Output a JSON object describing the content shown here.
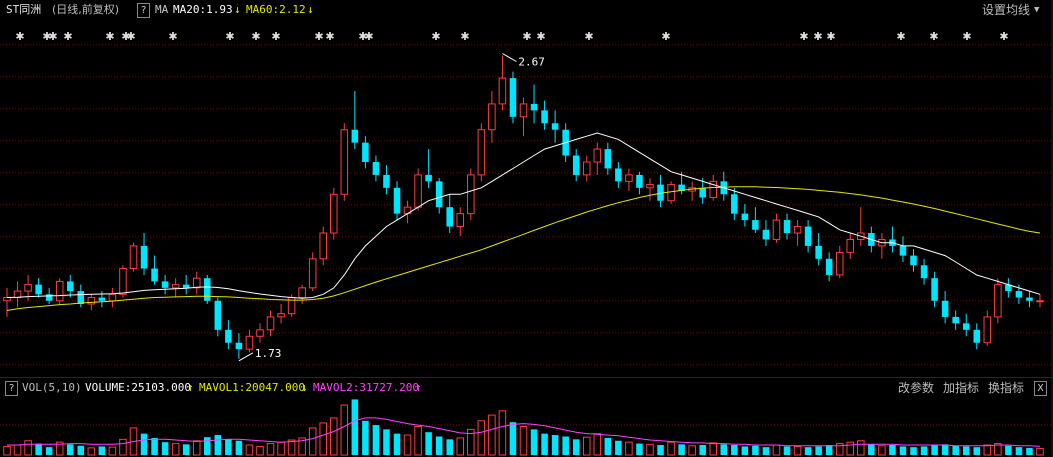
{
  "header": {
    "stock_name": "ST同洲",
    "period": "(日线,前复权)",
    "help": "?",
    "ma_label": "MA",
    "ma20_label": "MA20:1.93",
    "ma20_arrow": "↓",
    "ma60_label": "MA60:2.12",
    "ma60_arrow": "↓",
    "settings_button": "设置均线"
  },
  "volume_header": {
    "help": "?",
    "indicator": "VOL(5,10)",
    "volume_label": "VOLUME:25103.000",
    "volume_arrow": "↑",
    "mavol1_label": "MAVOL1:20047.000",
    "mavol1_arrow": "↓",
    "mavol2_label": "MAVOL2:31727.200",
    "mavol2_arrow": "↑",
    "change_params": "改参数",
    "add_indicator": "加指标",
    "swap_indicator": "换指标",
    "close": "X"
  },
  "chart_data": {
    "type": "candlestick",
    "price_annotations": {
      "high": "2.67",
      "low": "1.73"
    },
    "colors": {
      "up": "#ff3c3c",
      "down": "#00e5ff",
      "ma20": "#ffffff",
      "ma60": "#e6e600",
      "mavol2": "#ff40ff",
      "grid": "#7a0000"
    },
    "candles": [
      [
        1.91,
        1.95,
        1.86,
        1.92
      ],
      [
        1.92,
        1.97,
        1.89,
        1.94
      ],
      [
        1.94,
        1.99,
        1.91,
        1.96
      ],
      [
        1.96,
        1.98,
        1.92,
        1.93
      ],
      [
        1.93,
        1.95,
        1.9,
        1.91
      ],
      [
        1.91,
        1.98,
        1.9,
        1.97
      ],
      [
        1.97,
        1.99,
        1.92,
        1.94
      ],
      [
        1.94,
        1.96,
        1.89,
        1.9
      ],
      [
        1.9,
        1.93,
        1.88,
        1.92
      ],
      [
        1.92,
        1.94,
        1.89,
        1.91
      ],
      [
        1.91,
        1.95,
        1.89,
        1.93
      ],
      [
        1.93,
        2.02,
        1.92,
        2.01
      ],
      [
        2.01,
        2.09,
        2.0,
        2.08
      ],
      [
        2.08,
        2.12,
        1.99,
        2.01
      ],
      [
        2.01,
        2.05,
        1.96,
        1.97
      ],
      [
        1.97,
        1.99,
        1.93,
        1.95
      ],
      [
        1.95,
        1.98,
        1.92,
        1.96
      ],
      [
        1.96,
        1.99,
        1.93,
        1.95
      ],
      [
        1.95,
        2.0,
        1.93,
        1.98
      ],
      [
        1.98,
        1.99,
        1.9,
        1.91
      ],
      [
        1.91,
        1.92,
        1.8,
        1.82
      ],
      [
        1.82,
        1.85,
        1.76,
        1.78
      ],
      [
        1.78,
        1.81,
        1.73,
        1.76
      ],
      [
        1.76,
        1.82,
        1.75,
        1.8
      ],
      [
        1.8,
        1.84,
        1.78,
        1.82
      ],
      [
        1.82,
        1.88,
        1.8,
        1.86
      ],
      [
        1.86,
        1.9,
        1.84,
        1.87
      ],
      [
        1.87,
        1.93,
        1.86,
        1.92
      ],
      [
        1.92,
        1.96,
        1.9,
        1.95
      ],
      [
        1.95,
        2.06,
        1.94,
        2.04
      ],
      [
        2.04,
        2.14,
        2.02,
        2.12
      ],
      [
        2.12,
        2.26,
        2.1,
        2.24
      ],
      [
        2.24,
        2.46,
        2.22,
        2.44
      ],
      [
        2.44,
        2.56,
        2.38,
        2.4
      ],
      [
        2.4,
        2.42,
        2.32,
        2.34
      ],
      [
        2.34,
        2.36,
        2.28,
        2.3
      ],
      [
        2.3,
        2.33,
        2.24,
        2.26
      ],
      [
        2.26,
        2.28,
        2.16,
        2.18
      ],
      [
        2.18,
        2.22,
        2.15,
        2.2
      ],
      [
        2.2,
        2.32,
        2.19,
        2.3
      ],
      [
        2.3,
        2.38,
        2.26,
        2.28
      ],
      [
        2.28,
        2.29,
        2.18,
        2.2
      ],
      [
        2.2,
        2.24,
        2.12,
        2.14
      ],
      [
        2.14,
        2.2,
        2.11,
        2.18
      ],
      [
        2.18,
        2.32,
        2.16,
        2.3
      ],
      [
        2.3,
        2.46,
        2.28,
        2.44
      ],
      [
        2.44,
        2.56,
        2.4,
        2.52
      ],
      [
        2.52,
        2.67,
        2.5,
        2.6
      ],
      [
        2.6,
        2.62,
        2.46,
        2.48
      ],
      [
        2.48,
        2.54,
        2.42,
        2.52
      ],
      [
        2.52,
        2.58,
        2.46,
        2.5
      ],
      [
        2.5,
        2.53,
        2.44,
        2.46
      ],
      [
        2.46,
        2.5,
        2.4,
        2.44
      ],
      [
        2.44,
        2.46,
        2.34,
        2.36
      ],
      [
        2.36,
        2.38,
        2.28,
        2.3
      ],
      [
        2.3,
        2.36,
        2.28,
        2.34
      ],
      [
        2.34,
        2.4,
        2.3,
        2.38
      ],
      [
        2.38,
        2.4,
        2.3,
        2.32
      ],
      [
        2.32,
        2.34,
        2.26,
        2.28
      ],
      [
        2.28,
        2.32,
        2.25,
        2.3
      ],
      [
        2.3,
        2.31,
        2.24,
        2.26
      ],
      [
        2.26,
        2.29,
        2.22,
        2.27
      ],
      [
        2.27,
        2.3,
        2.2,
        2.22
      ],
      [
        2.22,
        2.28,
        2.21,
        2.27
      ],
      [
        2.27,
        2.31,
        2.24,
        2.25
      ],
      [
        2.25,
        2.28,
        2.22,
        2.26
      ],
      [
        2.26,
        2.29,
        2.21,
        2.23
      ],
      [
        2.23,
        2.3,
        2.22,
        2.28
      ],
      [
        2.28,
        2.31,
        2.22,
        2.24
      ],
      [
        2.24,
        2.26,
        2.16,
        2.18
      ],
      [
        2.18,
        2.21,
        2.14,
        2.16
      ],
      [
        2.16,
        2.2,
        2.12,
        2.13
      ],
      [
        2.13,
        2.16,
        2.08,
        2.1
      ],
      [
        2.1,
        2.18,
        2.09,
        2.16
      ],
      [
        2.16,
        2.18,
        2.1,
        2.12
      ],
      [
        2.12,
        2.16,
        2.08,
        2.14
      ],
      [
        2.14,
        2.16,
        2.06,
        2.08
      ],
      [
        2.08,
        2.12,
        2.02,
        2.04
      ],
      [
        2.04,
        2.06,
        1.97,
        1.99
      ],
      [
        1.99,
        2.08,
        1.98,
        2.06
      ],
      [
        2.06,
        2.12,
        2.04,
        2.1
      ],
      [
        2.1,
        2.2,
        2.08,
        2.12
      ],
      [
        2.12,
        2.14,
        2.06,
        2.08
      ],
      [
        2.08,
        2.12,
        2.04,
        2.1
      ],
      [
        2.1,
        2.14,
        2.06,
        2.08
      ],
      [
        2.08,
        2.11,
        2.03,
        2.05
      ],
      [
        2.05,
        2.07,
        2.0,
        2.02
      ],
      [
        2.02,
        2.04,
        1.96,
        1.98
      ],
      [
        1.98,
        2.0,
        1.89,
        1.91
      ],
      [
        1.91,
        1.94,
        1.84,
        1.86
      ],
      [
        1.86,
        1.88,
        1.82,
        1.84
      ],
      [
        1.84,
        1.87,
        1.8,
        1.82
      ],
      [
        1.82,
        1.84,
        1.76,
        1.78
      ],
      [
        1.78,
        1.88,
        1.77,
        1.86
      ],
      [
        1.86,
        1.98,
        1.84,
        1.96
      ],
      [
        1.96,
        1.98,
        1.92,
        1.94
      ],
      [
        1.94,
        1.96,
        1.9,
        1.92
      ],
      [
        1.92,
        1.94,
        1.89,
        1.91
      ],
      [
        1.91,
        1.93,
        1.89,
        1.91
      ]
    ],
    "ma20": [
      1.92,
      1.921,
      1.923,
      1.924,
      1.925,
      1.926,
      1.928,
      1.929,
      1.93,
      1.931,
      1.932,
      1.934,
      1.938,
      1.942,
      1.944,
      1.946,
      1.947,
      1.949,
      1.952,
      1.953,
      1.951,
      1.947,
      1.941,
      1.936,
      1.931,
      1.927,
      1.923,
      1.92,
      1.918,
      1.92,
      1.93,
      1.95,
      1.99,
      2.04,
      2.08,
      2.11,
      2.14,
      2.16,
      2.18,
      2.2,
      2.22,
      2.23,
      2.24,
      2.24,
      2.25,
      2.26,
      2.28,
      2.3,
      2.32,
      2.34,
      2.36,
      2.38,
      2.39,
      2.4,
      2.41,
      2.42,
      2.43,
      2.42,
      2.41,
      2.39,
      2.37,
      2.35,
      2.33,
      2.31,
      2.3,
      2.29,
      2.28,
      2.27,
      2.26,
      2.25,
      2.24,
      2.23,
      2.22,
      2.21,
      2.2,
      2.19,
      2.18,
      2.17,
      2.15,
      2.13,
      2.12,
      2.11,
      2.1,
      2.09,
      2.09,
      2.08,
      2.08,
      2.07,
      2.06,
      2.05,
      2.03,
      2.01,
      1.99,
      1.98,
      1.97,
      1.96,
      1.95,
      1.94,
      1.93
    ],
    "ma60": [
      1.88,
      1.885,
      1.889,
      1.892,
      1.895,
      1.898,
      1.9,
      1.903,
      1.905,
      1.907,
      1.909,
      1.912,
      1.915,
      1.918,
      1.92,
      1.921,
      1.922,
      1.923,
      1.924,
      1.924,
      1.923,
      1.922,
      1.92,
      1.918,
      1.916,
      1.914,
      1.913,
      1.912,
      1.912,
      1.914,
      1.918,
      1.925,
      1.935,
      1.946,
      1.957,
      1.968,
      1.978,
      1.988,
      1.998,
      2.008,
      2.018,
      2.028,
      2.038,
      2.048,
      2.058,
      2.068,
      2.08,
      2.092,
      2.104,
      2.116,
      2.128,
      2.14,
      2.152,
      2.163,
      2.174,
      2.185,
      2.195,
      2.205,
      2.214,
      2.222,
      2.23,
      2.237,
      2.243,
      2.248,
      2.252,
      2.256,
      2.259,
      2.261,
      2.262,
      2.263,
      2.263,
      2.263,
      2.262,
      2.261,
      2.259,
      2.257,
      2.255,
      2.252,
      2.249,
      2.246,
      2.242,
      2.238,
      2.233,
      2.228,
      2.222,
      2.216,
      2.21,
      2.203,
      2.196,
      2.188,
      2.18,
      2.172,
      2.164,
      2.156,
      2.148,
      2.14,
      2.132,
      2.125,
      2.12
    ],
    "volume": [
      12,
      14,
      20,
      16,
      11,
      18,
      15,
      13,
      10,
      12,
      11,
      22,
      38,
      30,
      24,
      18,
      16,
      15,
      20,
      25,
      28,
      22,
      20,
      14,
      12,
      16,
      18,
      21,
      24,
      38,
      45,
      52,
      70,
      78,
      48,
      42,
      36,
      30,
      28,
      40,
      32,
      26,
      22,
      24,
      36,
      48,
      56,
      62,
      46,
      40,
      36,
      30,
      28,
      26,
      22,
      25,
      30,
      24,
      20,
      18,
      16,
      15,
      14,
      18,
      15,
      13,
      14,
      17,
      15,
      14,
      12,
      13,
      11,
      14,
      12,
      12,
      11,
      12,
      14,
      16,
      18,
      20,
      15,
      13,
      14,
      12,
      11,
      12,
      14,
      15,
      13,
      12,
      11,
      14,
      16,
      13,
      11,
      10,
      9
    ],
    "mavol2": [
      14,
      14,
      15,
      15,
      15,
      15,
      16,
      16,
      15,
      15,
      15,
      16,
      19,
      21,
      22,
      22,
      21,
      20,
      19,
      20,
      21,
      22,
      22,
      21,
      20,
      19,
      18,
      19,
      20,
      23,
      28,
      33,
      40,
      48,
      52,
      52,
      50,
      47,
      44,
      42,
      40,
      37,
      34,
      31,
      30,
      32,
      36,
      40,
      43,
      44,
      43,
      41,
      38,
      35,
      32,
      30,
      29,
      28,
      27,
      25,
      23,
      21,
      20,
      19,
      18,
      17,
      17,
      16,
      16,
      15,
      15,
      14,
      14,
      14,
      13,
      13,
      13,
      13,
      13,
      13,
      14,
      15,
      15,
      15,
      15,
      14,
      14,
      14,
      14,
      14,
      13,
      13,
      13,
      13,
      14,
      14,
      13,
      13,
      12
    ],
    "markers": [
      20,
      47,
      53,
      68,
      110,
      126,
      131,
      173,
      230,
      256,
      276,
      319,
      330,
      363,
      369,
      436,
      465,
      527,
      541,
      589,
      666,
      804,
      818,
      831,
      901,
      934,
      967,
      1004
    ]
  }
}
